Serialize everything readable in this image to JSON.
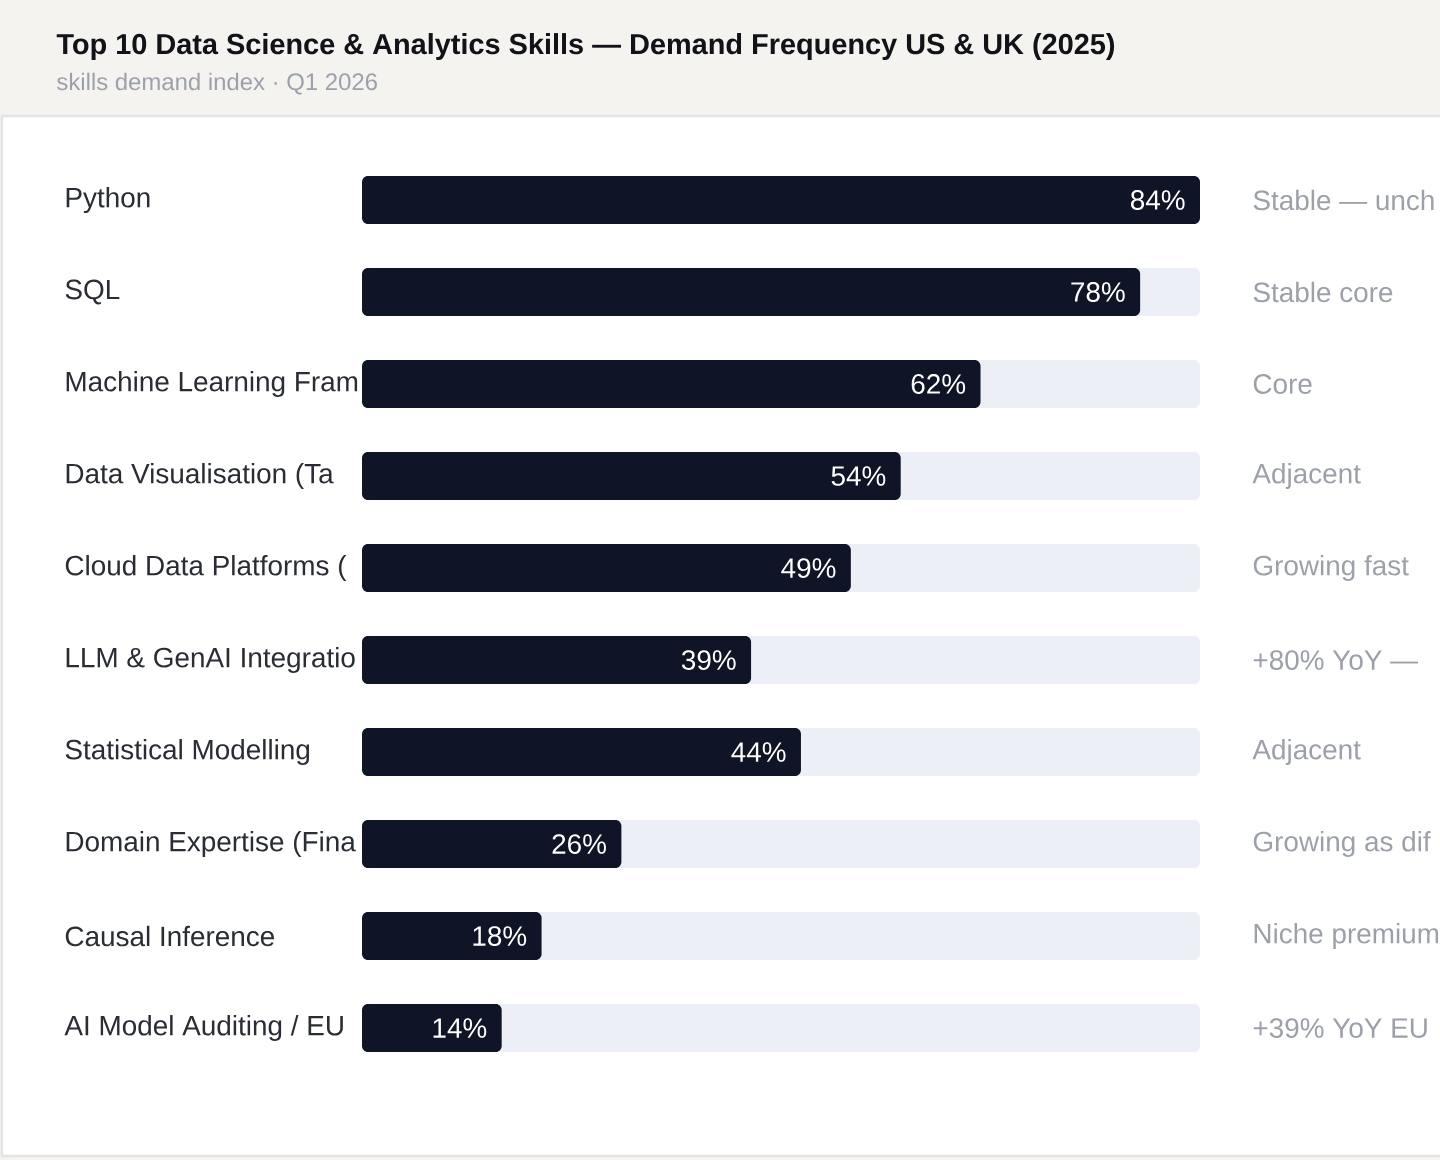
{
  "chart_data": {
    "type": "bar",
    "orientation": "horizontal",
    "title": "Top 10 Data Science & Analytics Skills — Demand Frequency US & UK (2025)",
    "subtitle": "skills demand index · Q1 2026",
    "categories": [
      "Python",
      "SQL",
      "Machine Learning Fram",
      "Data Visualisation (Ta",
      "Cloud Data Platforms (",
      "LLM & GenAI Integratio",
      "Statistical Modelling",
      "Domain Expertise (Fina",
      "Causal Inference",
      "AI Model Auditing / EU"
    ],
    "values": [
      84,
      78,
      62,
      54,
      49,
      39,
      44,
      26,
      18,
      14
    ],
    "value_labels": [
      "84%",
      "78%",
      "62%",
      "54%",
      "49%",
      "39%",
      "44%",
      "26%",
      "18%",
      "14%"
    ],
    "color": "#0f1426",
    "xlim": [
      0,
      84
    ],
    "tick_labels": "y",
    "annotations": [
      "Stable — unch",
      "Stable core",
      "Core",
      "Adjacent",
      "Growing fast",
      "+80% YoY —",
      "Adjacent",
      "Growing as dif",
      "Niche premium",
      "+39% YoY EU"
    ]
  }
}
